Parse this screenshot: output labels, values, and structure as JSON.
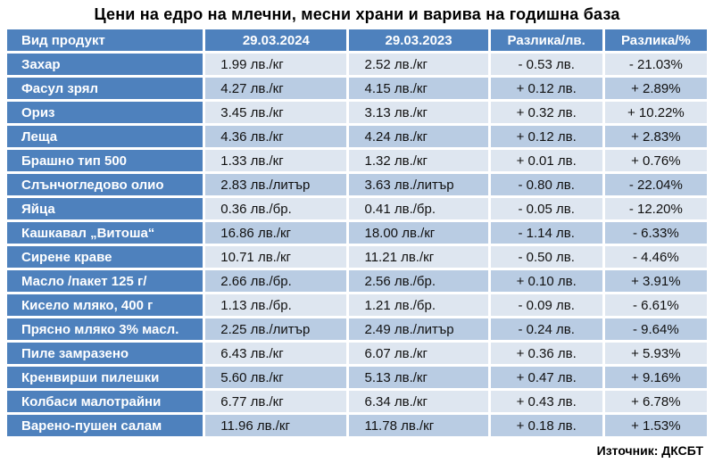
{
  "title": "Цени на едро на млечни, месни храни и варива на годишна база",
  "source_label": "Източник: ДКСБТ",
  "colors": {
    "header_blue": "#4E81BD",
    "row_light": "#DEE6F0",
    "row_medium": "#B9CCE3",
    "header_text": "#FFFFFF",
    "data_text": "#111111"
  },
  "chart_data": {
    "type": "table",
    "title": "Цени на едро на млечни, месни храни и варива на годишна база",
    "columns": [
      "Вид продукт",
      "29.03.2024",
      "29.03.2023",
      "Разлика/лв.",
      "Разлика/%"
    ],
    "rows": [
      [
        "Захар",
        "1.99 лв./кг",
        "2.52 лв./кг",
        "- 0.53 лв.",
        "- 21.03%"
      ],
      [
        "Фасул зрял",
        "4.27 лв./кг",
        "4.15 лв./кг",
        "+ 0.12 лв.",
        "+ 2.89%"
      ],
      [
        "Ориз",
        "3.45 лв./кг",
        "3.13 лв./кг",
        "+ 0.32 лв.",
        "+ 10.22%"
      ],
      [
        "Леща",
        "4.36 лв./кг",
        "4.24 лв./кг",
        "+ 0.12 лв.",
        "+ 2.83%"
      ],
      [
        "Брашно тип 500",
        "1.33 лв./кг",
        "1.32 лв./кг",
        "+ 0.01 лв.",
        "+ 0.76%"
      ],
      [
        "Слънчогледово олио",
        "2.83 лв./литър",
        "3.63 лв./литър",
        "- 0.80 лв.",
        "- 22.04%"
      ],
      [
        "Яйца",
        "0.36 лв./бр.",
        "0.41 лв./бр.",
        "- 0.05 лв.",
        "- 12.20%"
      ],
      [
        "Кашкавал „Витоша“",
        "16.86 лв./кг",
        "18.00 лв./кг",
        "- 1.14 лв.",
        "- 6.33%"
      ],
      [
        "Сирене краве",
        "10.71 лв./кг",
        "11.21 лв./кг",
        "- 0.50 лв.",
        "- 4.46%"
      ],
      [
        "Масло /пакет 125 г/",
        "2.66 лв./бр.",
        "2.56 лв./бр.",
        "+ 0.10 лв.",
        "+ 3.91%"
      ],
      [
        "Кисело мляко, 400 г",
        "1.13 лв./бр.",
        "1.21 лв./бр.",
        "- 0.09 лв.",
        "- 6.61%"
      ],
      [
        "Прясно мляко 3% масл.",
        "2.25 лв./литър",
        "2.49 лв./литър",
        "- 0.24 лв.",
        "- 9.64%"
      ],
      [
        "Пиле замразено",
        "6.43 лв./кг",
        "6.07 лв./кг",
        "+ 0.36 лв.",
        "+ 5.93%"
      ],
      [
        "Кренвирши пилешки",
        "5.60 лв./кг",
        "5.13 лв./кг",
        "+ 0.47 лв.",
        "+ 9.16%"
      ],
      [
        "Колбаси малотрайни",
        "6.77 лв./кг",
        "6.34 лв./кг",
        "+ 0.43 лв.",
        "+ 6.78%"
      ],
      [
        "Варено-пушен салам",
        "11.96 лв./кг",
        "11.78 лв./кг",
        "+ 0.18 лв.",
        "+ 1.53%"
      ]
    ],
    "source": "Източник: ДКСБТ",
    "layout": {
      "header_position": "top",
      "first_column_style": "header-blue",
      "striping": "alternating light/medium blue rows"
    }
  }
}
